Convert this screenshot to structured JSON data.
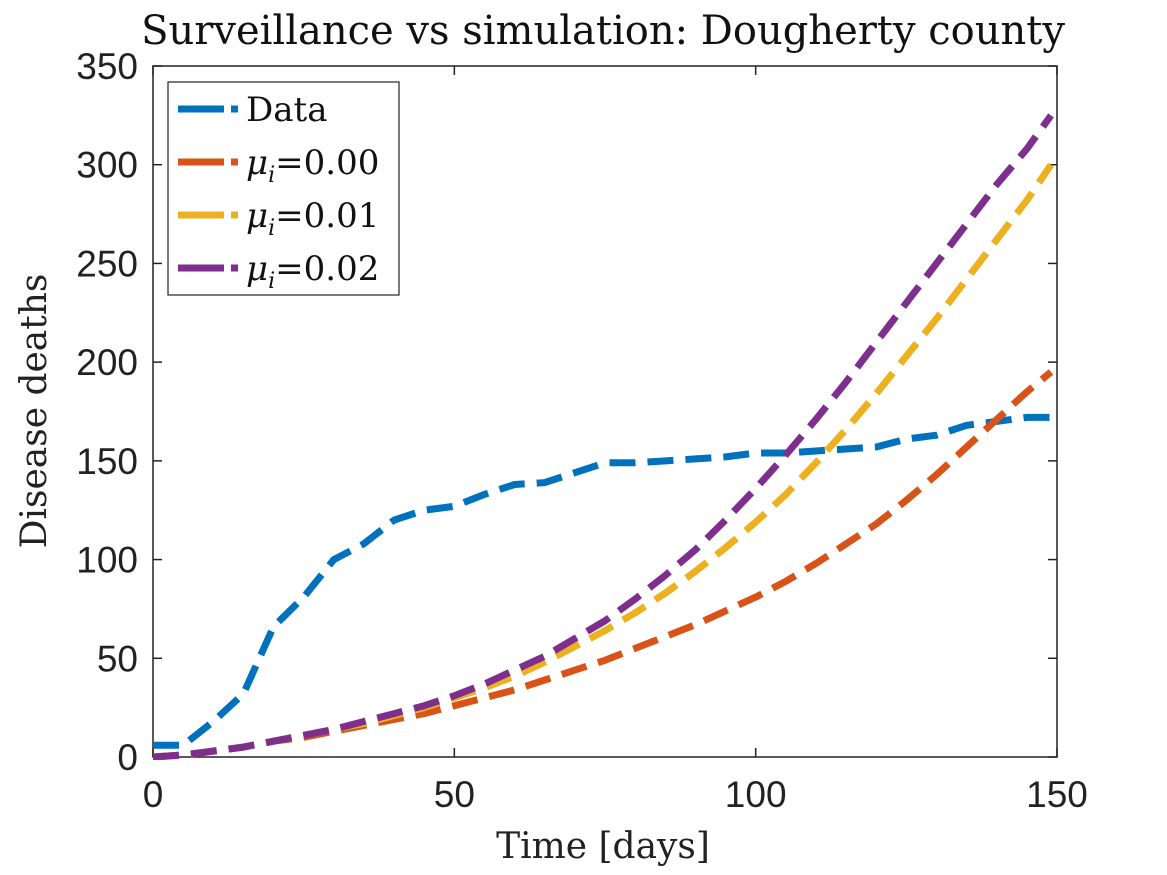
{
  "chart_data": {
    "type": "line",
    "title": "Surveillance vs simulation: Dougherty county",
    "xlabel": "Time [days]",
    "ylabel": "Disease deaths",
    "xlim": [
      0,
      150
    ],
    "ylim": [
      0,
      350
    ],
    "xticks": [
      0,
      50,
      100,
      150
    ],
    "yticks": [
      0,
      50,
      100,
      150,
      200,
      250,
      300,
      350
    ],
    "grid": false,
    "legend_position": "top-left",
    "x": [
      0,
      5,
      10,
      15,
      20,
      25,
      30,
      35,
      40,
      45,
      50,
      55,
      60,
      65,
      70,
      75,
      80,
      85,
      90,
      95,
      100,
      105,
      110,
      115,
      120,
      125,
      130,
      135,
      140,
      145,
      149
    ],
    "series": [
      {
        "name": "Data",
        "legend_label": "Data",
        "color": "#0072BD",
        "values": [
          6,
          6,
          18,
          32,
          66,
          81,
          100,
          108,
          120,
          125,
          127,
          133,
          138,
          139,
          144,
          149,
          149,
          150,
          151,
          152,
          154,
          154,
          155,
          156,
          157,
          161,
          163,
          168,
          170,
          172,
          172
        ]
      },
      {
        "name": "mu_i=0.00",
        "legend_symbol": "μ",
        "legend_sub": "i",
        "legend_value": "=0.00",
        "color": "#D95319",
        "values": [
          0,
          1,
          3,
          5,
          8,
          10,
          13,
          16,
          19,
          22,
          26,
          30,
          34,
          39,
          44,
          49,
          55,
          61,
          67,
          74,
          81,
          89,
          98,
          108,
          118,
          130,
          143,
          157,
          171,
          185,
          195
        ]
      },
      {
        "name": "mu_i=0.01",
        "legend_symbol": "μ",
        "legend_sub": "i",
        "legend_value": "=0.01",
        "color": "#EDB120",
        "values": [
          0,
          1,
          3,
          5,
          8,
          11,
          14,
          17,
          21,
          25,
          30,
          35,
          41,
          48,
          56,
          64,
          73,
          83,
          94,
          106,
          119,
          133,
          149,
          166,
          184,
          203,
          222,
          242,
          262,
          282,
          300
        ]
      },
      {
        "name": "mu_i=0.02",
        "legend_symbol": "μ",
        "legend_sub": "i",
        "legend_value": "=0.02",
        "color": "#7E2F8E",
        "values": [
          0,
          1,
          3,
          5,
          8,
          11,
          14,
          18,
          22,
          26,
          31,
          37,
          44,
          51,
          60,
          69,
          80,
          92,
          105,
          120,
          136,
          153,
          171,
          190,
          210,
          230,
          250,
          270,
          290,
          308,
          325
        ]
      }
    ]
  }
}
